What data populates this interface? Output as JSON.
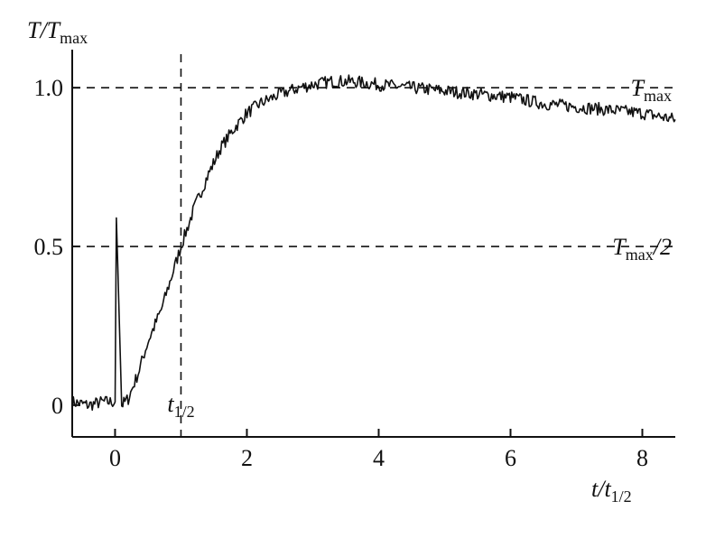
{
  "chart_data": {
    "type": "line",
    "title": "",
    "xlabel": {
      "base": "t/t",
      "sub": "1/2"
    },
    "ylabel": {
      "base": "T/T",
      "sub": "max"
    },
    "xlim": [
      -0.65,
      8.5
    ],
    "ylim": [
      -0.1,
      1.12
    ],
    "x_ticks": [
      0,
      2,
      4,
      6,
      8
    ],
    "y_ticks": [
      {
        "value": 0,
        "label": "0"
      },
      {
        "value": 0.5,
        "label": "0.5"
      },
      {
        "value": 1.0,
        "label": "1.0"
      }
    ],
    "grid": false,
    "reference_lines": [
      {
        "orientation": "horizontal",
        "value": 1.0,
        "style": "dashed",
        "label": {
          "base": "T",
          "sub": "max",
          "tail": ""
        }
      },
      {
        "orientation": "horizontal",
        "value": 0.5,
        "style": "dashed",
        "label": {
          "base": "T",
          "sub": "max",
          "tail": "/2"
        }
      },
      {
        "orientation": "vertical",
        "value": 1.0,
        "style": "dashed",
        "label": {
          "base": "t",
          "sub": "1/2",
          "tail": ""
        }
      }
    ],
    "series": [
      {
        "x": [
          -0.65,
          -0.4,
          -0.2,
          0.0,
          0.02,
          0.06,
          0.1,
          0.2,
          0.35,
          0.5,
          0.7,
          0.85,
          1.0,
          1.2,
          1.4,
          1.6,
          1.8,
          2.0,
          2.2,
          2.5,
          2.8,
          3.0,
          3.3,
          3.6,
          4.0,
          4.5,
          5.0,
          5.5,
          6.0,
          6.5,
          7.0,
          7.5,
          8.0,
          8.5
        ],
        "y": [
          0.01,
          0.0,
          0.01,
          0.01,
          0.59,
          0.3,
          0.0,
          0.02,
          0.1,
          0.2,
          0.3,
          0.4,
          0.5,
          0.62,
          0.72,
          0.81,
          0.87,
          0.92,
          0.95,
          0.98,
          1.0,
          1.01,
          1.02,
          1.02,
          1.01,
          1.0,
          0.99,
          0.98,
          0.97,
          0.95,
          0.94,
          0.93,
          0.92,
          0.9
        ],
        "noise_amplitude": 0.02
      }
    ]
  }
}
